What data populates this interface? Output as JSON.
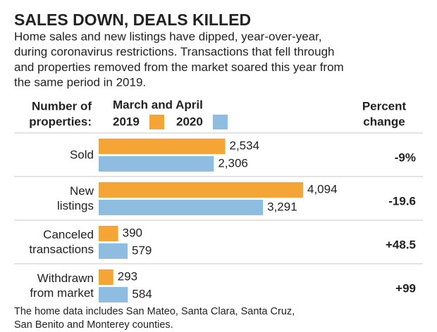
{
  "chart_data": {
    "type": "grouped-hbar",
    "title": "SALES DOWN, DEALS KILLED",
    "subtitle": [
      "Home sales and new listings have dipped, year-over-year,",
      "during coronavirus restrictions. Transactions that fell through",
      "and properties removed from the market soared this year from",
      "the same period in 2019."
    ],
    "row_header": [
      "Number of",
      "properties:"
    ],
    "legend_title": "March and April",
    "change_header": [
      "Percent",
      "change"
    ],
    "categories": [
      [
        "Sold"
      ],
      [
        "New",
        "listings"
      ],
      [
        "Canceled",
        "transactions"
      ],
      [
        "Withdrawn",
        "from market"
      ]
    ],
    "series": [
      {
        "name": "2019",
        "color": "#f4a536",
        "values": [
          2534,
          4094,
          390,
          293
        ],
        "value_labels": [
          "2,534",
          "4,094",
          "390",
          "293"
        ]
      },
      {
        "name": "2020",
        "color": "#8fbde2",
        "values": [
          2306,
          3291,
          579,
          584
        ],
        "value_labels": [
          "2,306",
          "3,291",
          "579",
          "584"
        ]
      }
    ],
    "percent_change": [
      "-9%",
      "-19.6",
      "+48.5",
      "+99"
    ],
    "footnote": [
      "The home data includes San Mateo, Santa Clara, Santa Cruz,",
      "San Benito and Monterey counties."
    ]
  }
}
